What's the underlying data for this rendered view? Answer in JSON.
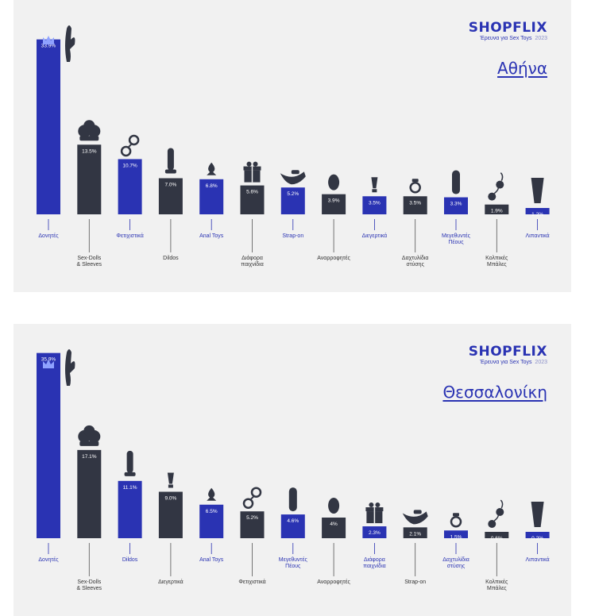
{
  "brand": {
    "logo": "SHOPFLIX",
    "tagline": "Έρευνα για Sex Toys",
    "year": "2023"
  },
  "colors": {
    "blue": "#2a33b3",
    "dark": "#323643",
    "panel": "#f1f1f1",
    "text": "#2a33b3",
    "darkText": "#333333"
  },
  "chart_data": [
    {
      "type": "bar",
      "title": "Αθήνα",
      "categories": [
        "Δονητές",
        "Sex-Dolls & Sleeves",
        "Φετιχιστικά",
        "Dildos",
        "Anal Toys",
        "Διάφορα παιχνίδια",
        "Strap-on",
        "Αναρροφητές",
        "Διεγερτικά",
        "Δαχτυλίδια στύσης",
        "Μεγεθυντές Πέους",
        "Κολπικές Μπάλες",
        "Λιπαντικά"
      ],
      "values": [
        33.9,
        13.5,
        10.7,
        7.0,
        6.8,
        5.6,
        5.2,
        3.9,
        3.5,
        3.5,
        3.3,
        1.9,
        1.2
      ],
      "value_labels": [
        "33.9%",
        "13.5%",
        "10.7%",
        "7.0%",
        "6.8%",
        "5.6%",
        "5.2%",
        "3.9%",
        "3.5%",
        "3.5%",
        "3.3%",
        "1.9%",
        "1.2%"
      ],
      "colors": [
        "blue",
        "dark",
        "blue",
        "dark",
        "blue",
        "dark",
        "blue",
        "dark",
        "blue",
        "dark",
        "blue",
        "dark",
        "blue"
      ],
      "icons": [
        "rabbit-vibrator",
        "doll",
        "handcuffs",
        "dildo",
        "plug",
        "gift",
        "strap-on",
        "suction",
        "stimulant",
        "ring",
        "extender",
        "balls",
        "lube"
      ],
      "unit": "%"
    },
    {
      "type": "bar",
      "title": "Θεσσαλονίκη",
      "categories": [
        "Δονητές",
        "Sex-Dolls & Sleeves",
        "Dildos",
        "Διεγερτικά",
        "Anal Toys",
        "Φετιχιστικά",
        "Μεγεθυντές Πέους",
        "Αναρροφητές",
        "Διάφορα παιχνίδια",
        "Strap-on",
        "Δαχτυλίδια στύσης",
        "Κολπικές Μπάλες",
        "Λιπαντικά"
      ],
      "values": [
        35.9,
        17.1,
        11.1,
        9.0,
        6.5,
        5.2,
        4.6,
        4.0,
        2.3,
        2.1,
        1.5,
        0.6,
        0.2
      ],
      "value_labels": [
        "35.9%",
        "17.1%",
        "11.1%",
        "9.0%",
        "6.5%",
        "5.2%",
        "4.6%",
        "4%",
        "2.3%",
        "2.1%",
        "1.5%",
        "0.6%",
        "0.2%"
      ],
      "colors": [
        "blue",
        "dark",
        "blue",
        "dark",
        "blue",
        "dark",
        "blue",
        "dark",
        "blue",
        "dark",
        "blue",
        "dark",
        "blue"
      ],
      "icons": [
        "rabbit-vibrator",
        "doll",
        "dildo",
        "stimulant",
        "plug",
        "handcuffs",
        "extender",
        "suction",
        "gift",
        "strap-on",
        "ring",
        "balls",
        "lube"
      ],
      "unit": "%"
    }
  ]
}
